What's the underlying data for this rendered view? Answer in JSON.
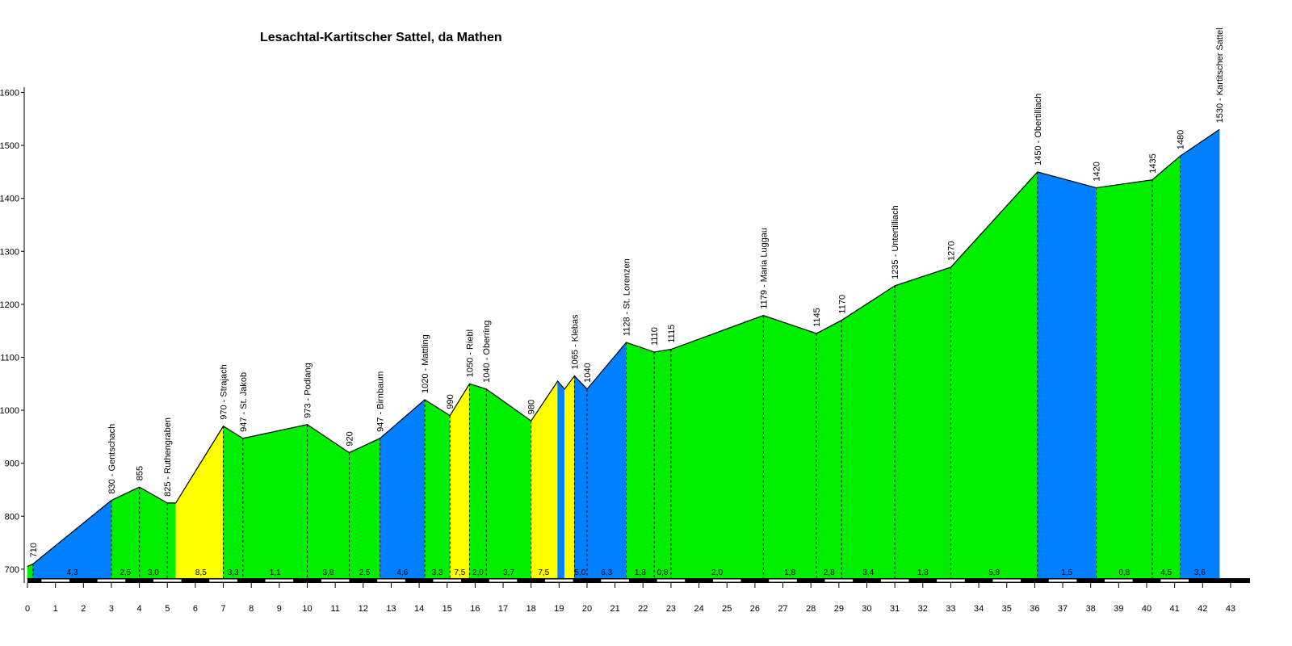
{
  "chart_data": {
    "type": "area",
    "title": "Lesachtal-Kartitscher Sattel, da Mathen",
    "xlabel": "",
    "ylabel": "",
    "xlim": [
      0,
      43
    ],
    "ylim": [
      680,
      1600
    ],
    "x_ticks": [
      0,
      1,
      2,
      3,
      4,
      5,
      6,
      7,
      8,
      9,
      10,
      11,
      12,
      13,
      14,
      15,
      16,
      17,
      18,
      19,
      20,
      21,
      22,
      23,
      24,
      25,
      26,
      27,
      28,
      29,
      30,
      31,
      32,
      33,
      34,
      35,
      36,
      37,
      38,
      39,
      40,
      41,
      42,
      43
    ],
    "y_ticks": [
      700,
      800,
      900,
      1000,
      1100,
      1200,
      1300,
      1400,
      1500,
      1600
    ],
    "grid": false,
    "legend": "none",
    "colors": {
      "green": "#00ee00",
      "blue": "#0080ff",
      "yellow": "#ffff00",
      "outline": "#000000"
    },
    "profile": [
      {
        "x": 0.0,
        "y": 705
      },
      {
        "x": 0.2,
        "y": 710,
        "label": "710"
      },
      {
        "x": 3.0,
        "y": 830,
        "label": "830 - Gentschach"
      },
      {
        "x": 4.0,
        "y": 855,
        "label": "855"
      },
      {
        "x": 5.0,
        "y": 825,
        "label": "825 - Ruthengraben"
      },
      {
        "x": 5.3,
        "y": 825
      },
      {
        "x": 7.0,
        "y": 970,
        "label": "970 - Strajach"
      },
      {
        "x": 7.7,
        "y": 947,
        "label": "947 - St. Jakob"
      },
      {
        "x": 10.0,
        "y": 973,
        "label": "973 - Podlang"
      },
      {
        "x": 11.5,
        "y": 920,
        "label": "920"
      },
      {
        "x": 12.6,
        "y": 947,
        "label": "947 - Birnbaum"
      },
      {
        "x": 14.2,
        "y": 1020,
        "label": "1020 - Mattling"
      },
      {
        "x": 15.1,
        "y": 990,
        "label": "990"
      },
      {
        "x": 15.8,
        "y": 1050,
        "label": "1050 - Riebl"
      },
      {
        "x": 16.4,
        "y": 1040,
        "label": "1040 - Oberring"
      },
      {
        "x": 18.0,
        "y": 980,
        "label": "980"
      },
      {
        "x": 18.95,
        "y": 1055
      },
      {
        "x": 19.2,
        "y": 1040
      },
      {
        "x": 19.55,
        "y": 1065,
        "label": "1065 - Klebas"
      },
      {
        "x": 20.0,
        "y": 1040,
        "label": "1040"
      },
      {
        "x": 21.4,
        "y": 1128,
        "label": "1128 - St. Lorenzen"
      },
      {
        "x": 22.4,
        "y": 1110,
        "label": "1110"
      },
      {
        "x": 23.0,
        "y": 1115,
        "label": "1115"
      },
      {
        "x": 26.3,
        "y": 1179,
        "label": "1179 - Maria Luggau"
      },
      {
        "x": 28.2,
        "y": 1145,
        "label": "1145"
      },
      {
        "x": 29.1,
        "y": 1170,
        "label": "1170"
      },
      {
        "x": 31.0,
        "y": 1235,
        "label": "1235 - Untertilliach"
      },
      {
        "x": 33.0,
        "y": 1270,
        "label": "1270"
      },
      {
        "x": 36.1,
        "y": 1450,
        "label": "1450 - Obertilliach"
      },
      {
        "x": 38.2,
        "y": 1420,
        "label": "1420"
      },
      {
        "x": 40.2,
        "y": 1435,
        "label": "1435"
      },
      {
        "x": 41.2,
        "y": 1480,
        "label": "1480"
      },
      {
        "x": 42.6,
        "y": 1530,
        "label": "1530 - Kartitscher Sattel"
      }
    ],
    "segment_colors": [
      "green",
      "blue",
      "green",
      "green",
      "green",
      "yellow",
      "green",
      "green",
      "green",
      "green",
      "blue",
      "green",
      "yellow",
      "green",
      "green",
      "yellow",
      "blue",
      "yellow",
      "blue",
      "blue",
      "green",
      "green",
      "green",
      "green",
      "green",
      "green",
      "green",
      "green",
      "blue",
      "green",
      "green",
      "blue",
      "green"
    ],
    "gradients": [
      {
        "x": 1.6,
        "label": "4,3"
      },
      {
        "x": 3.5,
        "label": "2,5"
      },
      {
        "x": 4.5,
        "label": "3,0"
      },
      {
        "x": 6.2,
        "label": "8,5"
      },
      {
        "x": 7.35,
        "label": "3,3"
      },
      {
        "x": 8.85,
        "label": "1,1"
      },
      {
        "x": 10.75,
        "label": "3,8"
      },
      {
        "x": 12.05,
        "label": "2,5"
      },
      {
        "x": 13.4,
        "label": "4,6"
      },
      {
        "x": 14.65,
        "label": "3,3"
      },
      {
        "x": 15.45,
        "label": "7,5"
      },
      {
        "x": 16.1,
        "label": "2,0"
      },
      {
        "x": 17.2,
        "label": "3,7"
      },
      {
        "x": 18.45,
        "label": "7,5"
      },
      {
        "x": 19.75,
        "label": "5,0"
      },
      {
        "x": 20.7,
        "label": "6,3"
      },
      {
        "x": 21.9,
        "label": "1,8"
      },
      {
        "x": 22.7,
        "label": "0,8"
      },
      {
        "x": 24.65,
        "label": "2,0"
      },
      {
        "x": 27.25,
        "label": "1,8"
      },
      {
        "x": 28.65,
        "label": "2,8"
      },
      {
        "x": 30.05,
        "label": "3,4"
      },
      {
        "x": 32.0,
        "label": "1,8"
      },
      {
        "x": 34.55,
        "label": "5,8"
      },
      {
        "x": 37.15,
        "label": "1,5"
      },
      {
        "x": 39.2,
        "label": "0,8"
      },
      {
        "x": 40.7,
        "label": "4,5"
      },
      {
        "x": 41.9,
        "label": "3,6"
      }
    ]
  }
}
